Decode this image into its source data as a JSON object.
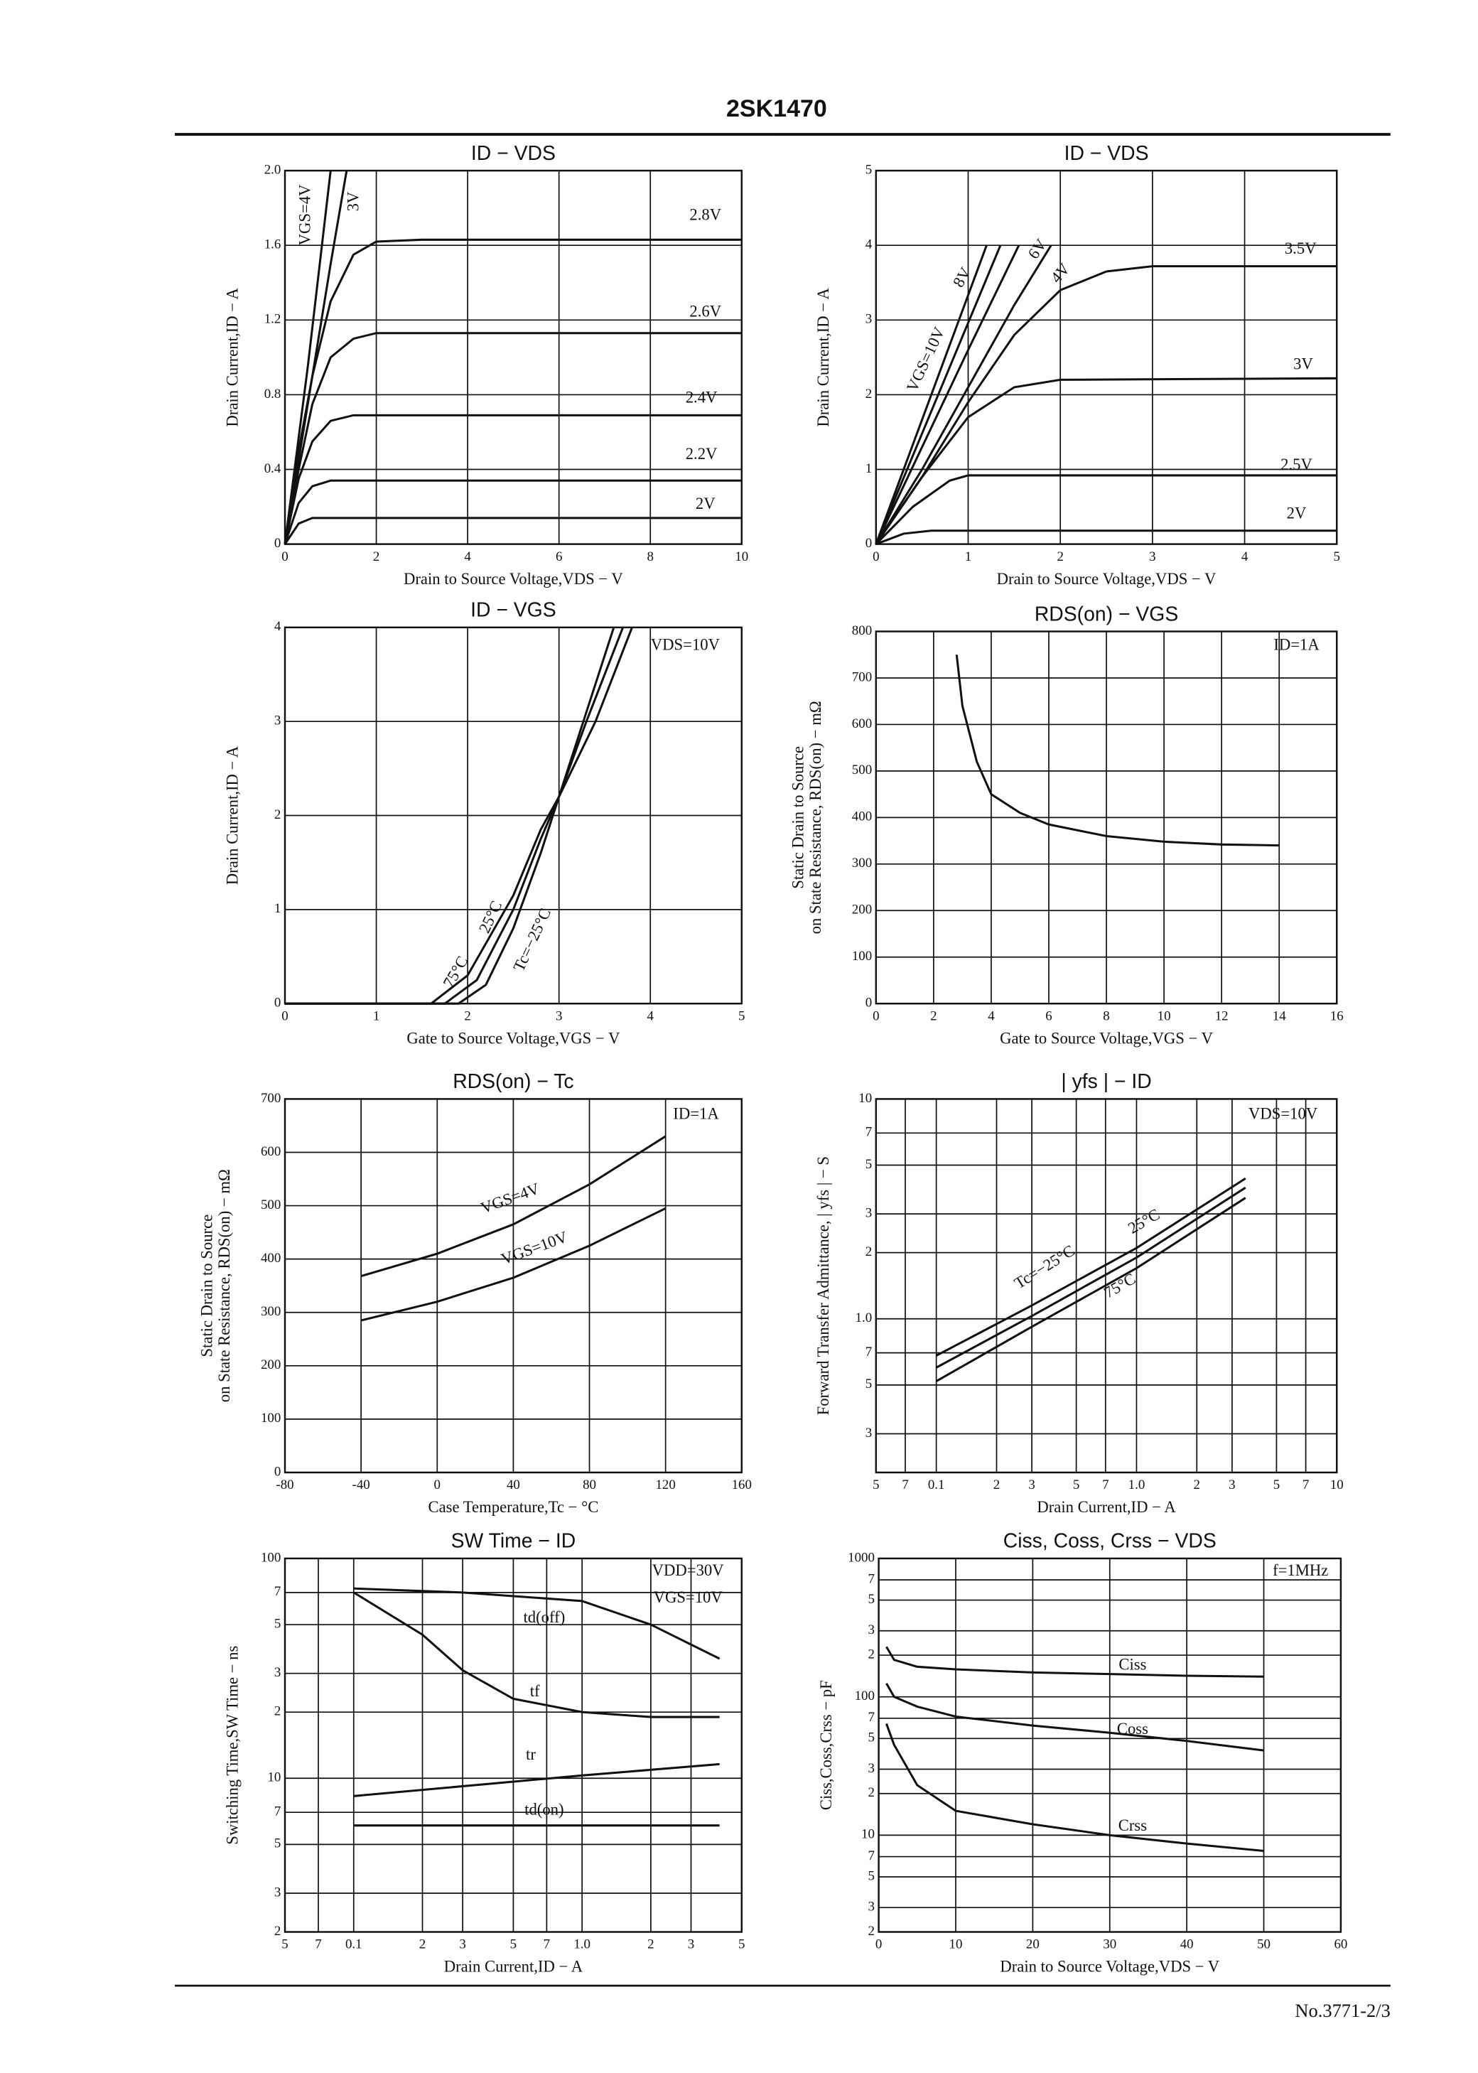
{
  "header": {
    "title": "2SK1470"
  },
  "footer": {
    "text": "No.3771-2/3"
  },
  "chart_data": [
    {
      "type": "line",
      "title": "ID − VDS",
      "xlabel": "Drain to Source Voltage,VDS − V",
      "ylabel": "Drain Current,ID − A",
      "color": "#111",
      "grid": true,
      "xlog": false,
      "ylog": false,
      "xlim": [
        0,
        10
      ],
      "ylim": [
        0,
        2
      ],
      "xticks": [
        0,
        2,
        4,
        6,
        8,
        10
      ],
      "yticks": [
        0,
        0.4,
        0.8,
        1.2,
        1.6,
        {
          "value": 2,
          "label": "2.0"
        }
      ],
      "annotations": [],
      "series": [
        {
          "name": "VGS=4V",
          "x": [
            0,
            0.5,
            1.0
          ],
          "values": [
            0,
            0.95,
            2.0
          ]
        },
        {
          "name": "3V",
          "x": [
            0,
            0.5,
            1.0,
            1.35
          ],
          "values": [
            0,
            0.75,
            1.5,
            2.0
          ]
        },
        {
          "name": "2.8V",
          "x": [
            0,
            0.3,
            0.6,
            1,
            1.5,
            2,
            3,
            10
          ],
          "values": [
            0,
            0.5,
            0.9,
            1.3,
            1.55,
            1.62,
            1.63,
            1.63
          ]
        },
        {
          "name": "2.6V",
          "x": [
            0,
            0.3,
            0.6,
            1,
            1.5,
            2,
            10
          ],
          "values": [
            0,
            0.4,
            0.75,
            1.0,
            1.1,
            1.13,
            1.13
          ]
        },
        {
          "name": "2.4V",
          "x": [
            0,
            0.3,
            0.6,
            1,
            1.5,
            10
          ],
          "values": [
            0,
            0.35,
            0.55,
            0.66,
            0.69,
            0.69
          ]
        },
        {
          "name": "2.2V",
          "x": [
            0,
            0.3,
            0.6,
            1,
            10
          ],
          "values": [
            0,
            0.22,
            0.31,
            0.34,
            0.34
          ]
        },
        {
          "name": "2V",
          "x": [
            0,
            0.3,
            0.6,
            10
          ],
          "values": [
            0,
            0.11,
            0.14,
            0.14
          ]
        }
      ]
    },
    {
      "type": "line",
      "title": "ID − VDS",
      "xlabel": "Drain to Source Voltage,VDS − V",
      "ylabel": "Drain Current,ID − A",
      "color": "#111",
      "grid": true,
      "xlog": false,
      "ylog": false,
      "xlim": [
        0,
        5
      ],
      "ylim": [
        0,
        5
      ],
      "xticks": [
        0,
        1,
        2,
        3,
        4,
        5
      ],
      "yticks": [
        0,
        1,
        2,
        3,
        4,
        5
      ],
      "annotations": [],
      "series": [
        {
          "name": "VGS=10V",
          "x": [
            0,
            1.2
          ],
          "values": [
            0,
            4
          ]
        },
        {
          "name": "8V",
          "x": [
            0,
            1.35
          ],
          "values": [
            0,
            4
          ]
        },
        {
          "name": "6V",
          "x": [
            0,
            0.5,
            1,
            1.55
          ],
          "values": [
            0,
            1.3,
            2.6,
            4
          ]
        },
        {
          "name": "4V",
          "x": [
            0,
            0.5,
            1,
            1.5,
            1.9
          ],
          "values": [
            0,
            1.0,
            2.1,
            3.2,
            4
          ]
        },
        {
          "name": "3.5V",
          "x": [
            0,
            0.5,
            1,
            1.5,
            2,
            2.5,
            3,
            5
          ],
          "values": [
            0,
            0.9,
            1.9,
            2.8,
            3.4,
            3.65,
            3.72,
            3.72
          ]
        },
        {
          "name": "3V",
          "x": [
            0,
            0.5,
            1,
            1.5,
            2,
            5
          ],
          "values": [
            0,
            0.9,
            1.7,
            2.1,
            2.2,
            2.22
          ]
        },
        {
          "name": "2.5V",
          "x": [
            0,
            0.4,
            0.8,
            1,
            5
          ],
          "values": [
            0,
            0.5,
            0.85,
            0.92,
            0.92
          ]
        },
        {
          "name": "2V",
          "x": [
            0,
            0.3,
            0.6,
            5
          ],
          "values": [
            0,
            0.14,
            0.18,
            0.18
          ]
        }
      ]
    },
    {
      "type": "line",
      "title": "ID − VGS",
      "xlabel": "Gate to Source Voltage,VGS − V",
      "ylabel": "Drain Current,ID − A",
      "color": "#111",
      "grid": true,
      "xlog": false,
      "ylog": false,
      "xlim": [
        0,
        5
      ],
      "ylim": [
        0,
        4
      ],
      "xticks": [
        0,
        1,
        2,
        3,
        4,
        5
      ],
      "yticks": [
        0,
        1,
        2,
        3,
        4
      ],
      "annotations": [
        "VDS=10V"
      ],
      "series": [
        {
          "name": "75°C",
          "x": [
            0,
            1.6,
            2.0,
            2.5,
            2.8,
            3,
            3.4,
            3.8
          ],
          "values": [
            0,
            0,
            0.3,
            1.15,
            1.85,
            2.2,
            3.0,
            4
          ]
        },
        {
          "name": "25°C",
          "x": [
            0,
            1.75,
            2.1,
            2.5,
            2.8,
            3,
            3.3,
            3.7
          ],
          "values": [
            0,
            0,
            0.25,
            1.0,
            1.75,
            2.2,
            3.0,
            4
          ]
        },
        {
          "name": "Tc=−25°C",
          "x": [
            0,
            1.9,
            2.2,
            2.5,
            2.8,
            3,
            3.3,
            3.6
          ],
          "values": [
            0,
            0,
            0.2,
            0.8,
            1.6,
            2.2,
            3.1,
            4
          ]
        }
      ]
    },
    {
      "type": "line",
      "title": "RDS(on) − VGS",
      "xlabel": "Gate to Source Voltage,VGS − V",
      "ylabel": [
        "Static Drain to Source",
        "on State Resistance, RDS(on) − mΩ"
      ],
      "color": "#111",
      "grid": true,
      "xlog": false,
      "ylog": false,
      "xlim": [
        0,
        16
      ],
      "ylim": [
        0,
        800
      ],
      "xticks": [
        0,
        2,
        4,
        6,
        8,
        10,
        12,
        14,
        16
      ],
      "yticks": [
        0,
        100,
        200,
        300,
        400,
        500,
        600,
        700,
        800
      ],
      "annotations": [
        "ID=1A"
      ],
      "series": [
        {
          "x": [
            2.8,
            3,
            3.5,
            4,
            5,
            6,
            8,
            10,
            12,
            14
          ],
          "values": [
            750,
            640,
            520,
            450,
            410,
            385,
            360,
            348,
            342,
            340
          ]
        }
      ]
    },
    {
      "type": "line",
      "title": "RDS(on) − Tc",
      "xlabel": "Case Temperature,Tc − °C",
      "ylabel": [
        "Static Drain to Source",
        "on State Resistance, RDS(on) − mΩ"
      ],
      "color": "#111",
      "grid": true,
      "xlog": false,
      "ylog": false,
      "xlim": [
        -80,
        160
      ],
      "ylim": [
        0,
        700
      ],
      "xticks": [
        -80,
        -40,
        0,
        40,
        80,
        120,
        160
      ],
      "yticks": [
        0,
        100,
        200,
        300,
        400,
        500,
        600,
        700
      ],
      "annotations": [
        "ID=1A"
      ],
      "series": [
        {
          "name": "VGS=4V",
          "x": [
            -40,
            0,
            40,
            80,
            120
          ],
          "values": [
            368,
            410,
            465,
            540,
            630
          ]
        },
        {
          "name": "VGS=10V",
          "x": [
            -40,
            0,
            40,
            80,
            120
          ],
          "values": [
            285,
            320,
            365,
            425,
            495
          ]
        }
      ]
    },
    {
      "type": "line",
      "title": "| yfs | − ID",
      "xlabel": "Drain Current,ID − A",
      "ylabel": "Forward Transfer Admittance, | yfs | − S",
      "color": "#111",
      "grid": true,
      "xlog": true,
      "ylog": true,
      "xlim": [
        0.05,
        10
      ],
      "ylim": [
        0.2,
        10
      ],
      "xticks": [
        {
          "value": 0.05,
          "label": "5"
        },
        {
          "value": 0.07,
          "label": "7"
        },
        0.1,
        {
          "value": 0.2,
          "label": "2"
        },
        {
          "value": 0.3,
          "label": "3"
        },
        {
          "value": 0.5,
          "label": "5"
        },
        {
          "value": 0.7,
          "label": "7"
        },
        {
          "value": 1,
          "label": "1.0"
        },
        2,
        3,
        5,
        7,
        10
      ],
      "yticks": [
        {
          "value": 0.3,
          "label": "3"
        },
        {
          "value": 0.5,
          "label": "5"
        },
        {
          "value": 0.7,
          "label": "7"
        },
        {
          "value": 1,
          "label": "1.0"
        },
        2,
        3,
        5,
        7,
        10
      ],
      "annotations": [
        "VDS=10V"
      ],
      "series": [
        {
          "name": "Tc=−25°C",
          "x": [
            0.1,
            0.3,
            1,
            3.5
          ],
          "values": [
            0.68,
            1.15,
            2.1,
            4.35
          ]
        },
        {
          "name": "25°C",
          "x": [
            0.1,
            0.3,
            1,
            3.5
          ],
          "values": [
            0.6,
            1.03,
            1.9,
            3.95
          ]
        },
        {
          "name": "75°C",
          "x": [
            0.1,
            0.3,
            1,
            3.5
          ],
          "values": [
            0.52,
            0.92,
            1.7,
            3.55
          ]
        }
      ]
    },
    {
      "type": "line",
      "title": "SW Time − ID",
      "xlabel": "Drain Current,ID − A",
      "ylabel": "Switching Time,SW Time − ns",
      "color": "#111",
      "grid": true,
      "xlog": true,
      "ylog": true,
      "xlim": [
        0.05,
        5
      ],
      "ylim": [
        2,
        100
      ],
      "xticks": [
        {
          "value": 0.05,
          "label": "5"
        },
        {
          "value": 0.07,
          "label": "7"
        },
        0.1,
        {
          "value": 0.2,
          "label": "2"
        },
        {
          "value": 0.3,
          "label": "3"
        },
        {
          "value": 0.5,
          "label": "5"
        },
        {
          "value": 0.7,
          "label": "7"
        },
        {
          "value": 1,
          "label": "1.0"
        },
        2,
        3,
        5
      ],
      "yticks": [
        2,
        3,
        5,
        7,
        10,
        {
          "value": 20,
          "label": "2"
        },
        {
          "value": 30,
          "label": "3"
        },
        {
          "value": 50,
          "label": "5"
        },
        {
          "value": 70,
          "label": "7"
        },
        100
      ],
      "annotations": [
        "VDD=30V",
        "VGS=10V"
      ],
      "series": [
        {
          "name": "td(off)",
          "x": [
            0.1,
            0.3,
            1,
            2,
            4
          ],
          "values": [
            73,
            70,
            64,
            50,
            35
          ]
        },
        {
          "name": "tf",
          "x": [
            0.1,
            0.2,
            0.3,
            0.5,
            1,
            2,
            4
          ],
          "values": [
            70,
            45,
            31,
            23,
            20,
            19,
            19
          ]
        },
        {
          "name": "tr",
          "x": [
            0.1,
            1,
            4
          ],
          "values": [
            8.3,
            10.3,
            11.6
          ]
        },
        {
          "name": "td(on)",
          "x": [
            0.1,
            1,
            4
          ],
          "values": [
            6.1,
            6.1,
            6.1
          ]
        }
      ]
    },
    {
      "type": "line",
      "title": "Ciss, Coss, Crss − VDS",
      "xlabel": "Drain to Source Voltage,VDS − V",
      "ylabel": "Ciss,Coss,Crss − pF",
      "color": "#111",
      "grid": true,
      "xlog": false,
      "ylog": true,
      "xlim": [
        0,
        60
      ],
      "ylim": [
        2,
        1000
      ],
      "xticks": [
        0,
        10,
        20,
        30,
        40,
        50,
        60
      ],
      "yticks": [
        2,
        3,
        5,
        7,
        10,
        {
          "value": 20,
          "label": "2"
        },
        {
          "value": 30,
          "label": "3"
        },
        {
          "value": 50,
          "label": "5"
        },
        {
          "value": 70,
          "label": "7"
        },
        100,
        {
          "value": 200,
          "label": "2"
        },
        {
          "value": 300,
          "label": "3"
        },
        {
          "value": 500,
          "label": "5"
        },
        {
          "value": 700,
          "label": "7"
        },
        1000
      ],
      "annotations": [
        "f=1MHz"
      ],
      "series": [
        {
          "name": "Ciss",
          "x": [
            1,
            2,
            5,
            10,
            20,
            30,
            40,
            50
          ],
          "values": [
            230,
            185,
            165,
            158,
            150,
            146,
            142,
            140
          ]
        },
        {
          "name": "Coss",
          "x": [
            1,
            2,
            5,
            10,
            20,
            30,
            40,
            50
          ],
          "values": [
            125,
            100,
            85,
            72,
            62,
            55,
            48,
            41
          ]
        },
        {
          "name": "Crss",
          "x": [
            1,
            2,
            5,
            10,
            20,
            30,
            40,
            50
          ],
          "values": [
            64,
            45,
            23,
            15,
            12,
            10,
            8.7,
            7.7
          ]
        }
      ]
    }
  ]
}
